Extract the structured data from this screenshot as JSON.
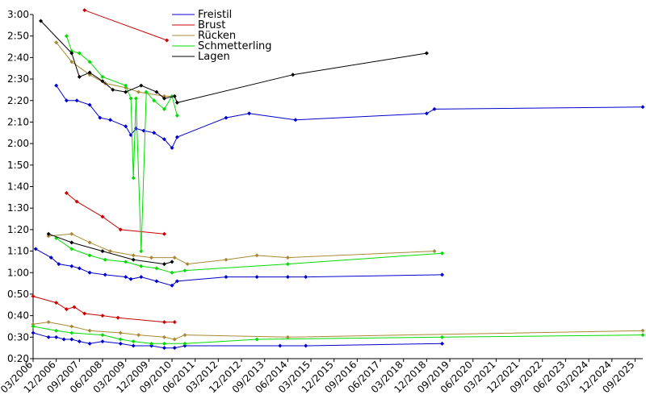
{
  "chart_data": {
    "type": "line",
    "title": "",
    "xlabel": "",
    "ylabel": "",
    "legend_placement": "top-center",
    "grid": false,
    "x_tick_labels": [
      "03/2006",
      "12/2006",
      "09/2007",
      "06/2008",
      "03/2009",
      "12/2009",
      "09/2010",
      "06/2011",
      "03/2012",
      "12/2012",
      "09/2013",
      "06/2014",
      "03/2015",
      "12/2015",
      "09/2016",
      "06/2017",
      "03/2018",
      "12/2018",
      "09/2019",
      "06/2020",
      "03/2021",
      "12/2021",
      "09/2022",
      "06/2023",
      "03/2024",
      "12/2024",
      "09/2025"
    ],
    "x_range": [
      "2006-03",
      "2025-12"
    ],
    "y_tick_labels": [
      "0:20",
      "0:30",
      "0:40",
      "0:50",
      "1:00",
      "1:10",
      "1:20",
      "1:30",
      "1:40",
      "1:50",
      "2:00",
      "2:10",
      "2:20",
      "2:30",
      "2:40",
      "2:50",
      "3:00"
    ],
    "y_range": [
      "0:20",
      "3:00"
    ],
    "series": [
      {
        "name": "Freistil",
        "color": "#0000cc",
        "lines": [
          [
            [
              "2006-03",
              "0:32"
            ],
            [
              "2006-09",
              "0:30"
            ],
            [
              "2006-12",
              "0:30"
            ],
            [
              "2007-03",
              "0:29"
            ],
            [
              "2007-06",
              "0:29"
            ],
            [
              "2007-09",
              "0:28"
            ],
            [
              "2008-01",
              "0:27"
            ],
            [
              "2008-06",
              "0:28"
            ],
            [
              "2009-01",
              "0:27"
            ],
            [
              "2009-06",
              "0:26"
            ],
            [
              "2010-01",
              "0:26"
            ],
            [
              "2010-06",
              "0:25"
            ],
            [
              "2010-10",
              "0:25"
            ],
            [
              "2011-02",
              "0:26"
            ],
            [
              "2014-03",
              "0:26"
            ],
            [
              "2015-01",
              "0:26"
            ],
            [
              "2019-06",
              "0:27"
            ]
          ],
          [
            [
              "2006-04",
              "1:11"
            ],
            [
              "2006-10",
              "1:07"
            ],
            [
              "2007-01",
              "1:04"
            ],
            [
              "2007-06",
              "1:03"
            ],
            [
              "2007-09",
              "1:02"
            ],
            [
              "2008-01",
              "1:00"
            ],
            [
              "2008-07",
              "0:59"
            ],
            [
              "2009-03",
              "0:58"
            ],
            [
              "2009-05",
              "0:57"
            ],
            [
              "2009-09",
              "0:58"
            ],
            [
              "2010-03",
              "0:56"
            ],
            [
              "2010-09",
              "0:54"
            ],
            [
              "2010-11",
              "0:56"
            ],
            [
              "2012-06",
              "0:58"
            ],
            [
              "2013-06",
              "0:58"
            ],
            [
              "2014-06",
              "0:58"
            ],
            [
              "2015-01",
              "0:58"
            ],
            [
              "2019-06",
              "0:59"
            ]
          ],
          [
            [
              "2006-12",
              "2:27"
            ],
            [
              "2007-04",
              "2:20"
            ],
            [
              "2007-08",
              "2:20"
            ],
            [
              "2008-01",
              "2:18"
            ],
            [
              "2008-05",
              "2:12"
            ],
            [
              "2008-09",
              "2:11"
            ],
            [
              "2009-03",
              "2:08"
            ],
            [
              "2009-05",
              "2:04"
            ],
            [
              "2009-07",
              "2:07"
            ],
            [
              "2009-10",
              "2:06"
            ],
            [
              "2010-02",
              "2:05"
            ],
            [
              "2010-06",
              "2:02"
            ],
            [
              "2010-09",
              "1:58"
            ],
            [
              "2010-11",
              "2:03"
            ],
            [
              "2012-06",
              "2:12"
            ],
            [
              "2013-03",
              "2:14"
            ],
            [
              "2014-09",
              "2:11"
            ],
            [
              "2018-12",
              "2:14"
            ],
            [
              "2019-03",
              "2:16"
            ],
            [
              "2025-12",
              "2:17"
            ]
          ]
        ]
      },
      {
        "name": "Brust",
        "color": "#cc0000",
        "lines": [
          [
            [
              "2006-03",
              "0:49"
            ],
            [
              "2006-12",
              "0:46"
            ],
            [
              "2007-04",
              "0:43"
            ],
            [
              "2007-07",
              "0:44"
            ],
            [
              "2007-11",
              "0:41"
            ],
            [
              "2008-06",
              "0:40"
            ],
            [
              "2008-12",
              "0:39"
            ],
            [
              "2010-06",
              "0:37"
            ],
            [
              "2010-10",
              "0:37"
            ]
          ],
          [
            [
              "2007-04",
              "1:37"
            ],
            [
              "2007-08",
              "1:33"
            ],
            [
              "2008-06",
              "1:26"
            ],
            [
              "2009-01",
              "1:20"
            ],
            [
              "2010-06",
              "1:18"
            ]
          ],
          [
            [
              "2007-11",
              "3:02"
            ],
            [
              "2010-07",
              "2:48"
            ]
          ]
        ]
      },
      {
        "name": "Rücken",
        "color": "#aa8833",
        "lines": [
          [
            [
              "2006-03",
              "0:36"
            ],
            [
              "2006-09",
              "0:37"
            ],
            [
              "2007-06",
              "0:35"
            ],
            [
              "2008-01",
              "0:33"
            ],
            [
              "2009-01",
              "0:32"
            ],
            [
              "2009-08",
              "0:31"
            ],
            [
              "2010-06",
              "0:30"
            ],
            [
              "2010-10",
              "0:29"
            ],
            [
              "2011-02",
              "0:31"
            ],
            [
              "2014-06",
              "0:30"
            ],
            [
              "2025-12",
              "0:33"
            ]
          ],
          [
            [
              "2006-09",
              "1:17"
            ],
            [
              "2007-06",
              "1:18"
            ],
            [
              "2008-01",
              "1:14"
            ],
            [
              "2008-09",
              "1:10"
            ],
            [
              "2009-06",
              "1:08"
            ],
            [
              "2010-01",
              "1:07"
            ],
            [
              "2010-10",
              "1:07"
            ],
            [
              "2011-03",
              "1:04"
            ],
            [
              "2012-06",
              "1:06"
            ],
            [
              "2013-06",
              "1:08"
            ],
            [
              "2014-06",
              "1:07"
            ],
            [
              "2019-03",
              "1:10"
            ]
          ],
          [
            [
              "2006-12",
              "2:47"
            ],
            [
              "2007-06",
              "2:38"
            ],
            [
              "2008-01",
              "2:32"
            ],
            [
              "2008-07",
              "2:28"
            ],
            [
              "2009-03",
              "2:26"
            ],
            [
              "2009-08",
              "2:24"
            ],
            [
              "2010-06",
              "2:22"
            ],
            [
              "2010-10",
              "2:22"
            ]
          ]
        ]
      },
      {
        "name": "Schmetterling",
        "color": "#00dd00",
        "lines": [
          [
            [
              "2006-03",
              "0:35"
            ],
            [
              "2006-12",
              "0:33"
            ],
            [
              "2007-06",
              "0:32"
            ],
            [
              "2008-06",
              "0:31"
            ],
            [
              "2009-01",
              "0:29"
            ],
            [
              "2009-06",
              "0:28"
            ],
            [
              "2010-01",
              "0:27"
            ],
            [
              "2010-06",
              "0:27"
            ],
            [
              "2011-02",
              "0:27"
            ],
            [
              "2013-06",
              "0:29"
            ],
            [
              "2019-06",
              "0:30"
            ],
            [
              "2025-12",
              "0:31"
            ]
          ],
          [
            [
              "2006-12",
              "1:16"
            ],
            [
              "2007-06",
              "1:11"
            ],
            [
              "2008-01",
              "1:08"
            ],
            [
              "2008-07",
              "1:06"
            ],
            [
              "2009-03",
              "1:05"
            ],
            [
              "2009-09",
              "1:03"
            ],
            [
              "2010-03",
              "1:02"
            ],
            [
              "2010-09",
              "1:00"
            ],
            [
              "2011-02",
              "1:01"
            ],
            [
              "2014-06",
              "1:04"
            ],
            [
              "2019-06",
              "1:09"
            ]
          ],
          [
            [
              "2007-04",
              "2:50"
            ],
            [
              "2007-06",
              "2:43"
            ],
            [
              "2007-09",
              "2:42"
            ],
            [
              "2008-01",
              "2:38"
            ],
            [
              "2008-06",
              "2:31"
            ],
            [
              "2009-03",
              "2:27"
            ],
            [
              "2009-05",
              "2:21"
            ],
            [
              "2009-06",
              "1:44"
            ],
            [
              "2009-07",
              "2:21"
            ],
            [
              "2009-09",
              "1:10"
            ],
            [
              "2009-11",
              "2:24"
            ],
            [
              "2010-02",
              "2:20"
            ],
            [
              "2010-06",
              "2:16"
            ],
            [
              "2010-09",
              "2:22"
            ],
            [
              "2010-11",
              "2:13"
            ]
          ]
        ]
      },
      {
        "name": "Lagen",
        "color": "#000000",
        "lines": [
          [
            [
              "2006-09",
              "1:18"
            ],
            [
              "2007-06",
              "1:14"
            ],
            [
              "2008-06",
              "1:10"
            ],
            [
              "2009-06",
              "1:06"
            ],
            [
              "2010-06",
              "1:04"
            ],
            [
              "2010-09",
              "1:05"
            ]
          ],
          [
            [
              "2006-06",
              "2:57"
            ],
            [
              "2007-06",
              "2:42"
            ],
            [
              "2007-09",
              "2:31"
            ],
            [
              "2008-01",
              "2:33"
            ],
            [
              "2008-06",
              "2:29"
            ],
            [
              "2008-10",
              "2:25"
            ],
            [
              "2009-03",
              "2:24"
            ],
            [
              "2009-09",
              "2:27"
            ],
            [
              "2010-03",
              "2:24"
            ],
            [
              "2010-06",
              "2:21"
            ],
            [
              "2010-10",
              "2:22"
            ],
            [
              "2010-11",
              "2:19"
            ],
            [
              "2014-08",
              "2:32"
            ],
            [
              "2018-12",
              "2:42"
            ]
          ]
        ]
      }
    ]
  }
}
